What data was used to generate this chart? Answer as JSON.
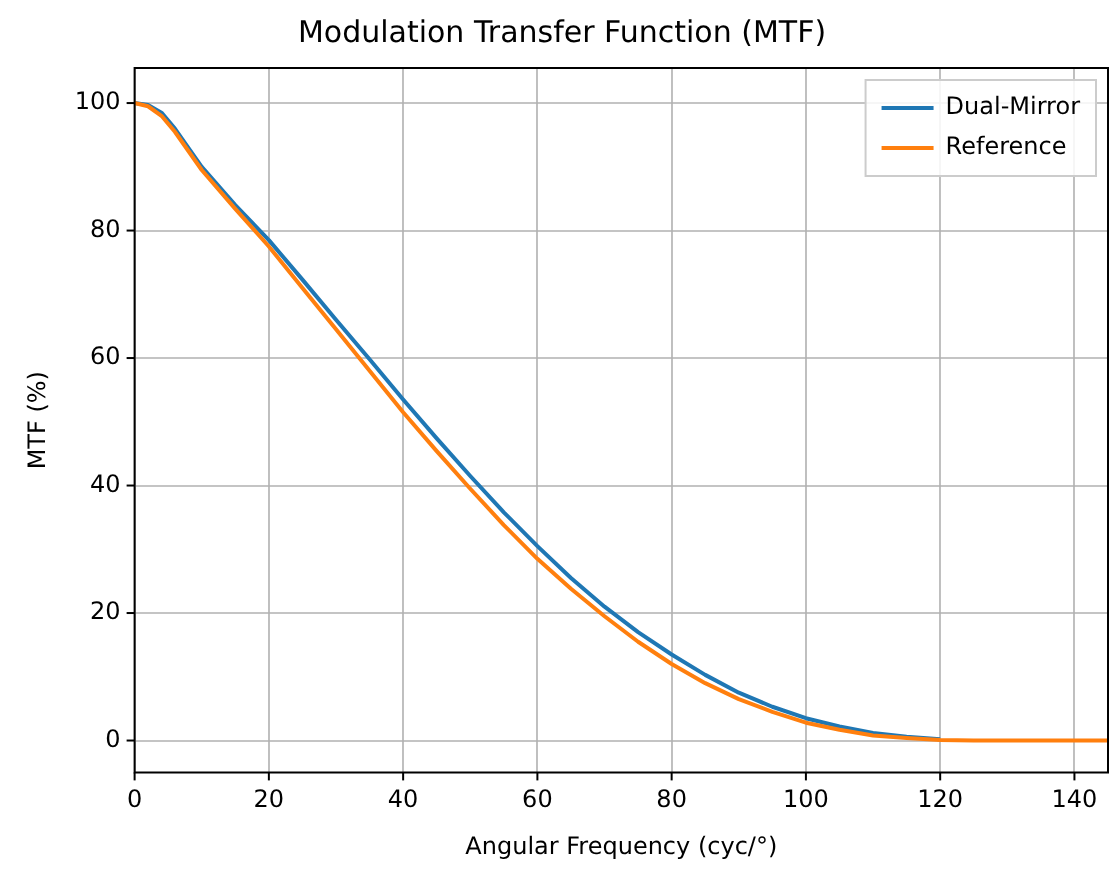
{
  "chart_data": {
    "type": "line",
    "title": "Modulation Transfer Function (MTF)",
    "xlabel": "Angular Frequency (cyc/°)",
    "ylabel": "MTF (%)",
    "x": [
      0,
      2,
      4,
      6,
      10,
      15,
      20,
      25,
      30,
      35,
      40,
      45,
      50,
      55,
      60,
      65,
      70,
      75,
      80,
      85,
      90,
      95,
      100,
      105,
      110,
      115,
      120,
      125,
      130,
      135,
      140,
      145
    ],
    "series": [
      {
        "name": "Dual-Mirror",
        "color": "#1f77b4",
        "values": [
          100,
          99.7,
          98.5,
          96,
          90,
          84,
          78.5,
          72.3,
          66,
          59.8,
          53.5,
          47.4,
          41.5,
          35.8,
          30.5,
          25.5,
          21,
          17,
          13.5,
          10.3,
          7.5,
          5.3,
          3.5,
          2.2,
          1.2,
          0.6,
          0.2,
          null,
          null,
          null,
          null,
          null
        ]
      },
      {
        "name": "Reference",
        "color": "#ff7f0e",
        "values": [
          100,
          99.5,
          98,
          95.5,
          89.5,
          83.4,
          77.5,
          71,
          64.5,
          58,
          51.5,
          45.4,
          39.5,
          33.8,
          28.5,
          23.8,
          19.5,
          15.5,
          12,
          9,
          6.5,
          4.5,
          2.8,
          1.7,
          0.8,
          0.4,
          0.1,
          0,
          0,
          0,
          0,
          0
        ]
      }
    ],
    "xlim": [
      0,
      145
    ],
    "xticks": [
      0,
      20,
      40,
      60,
      80,
      100,
      120,
      140
    ],
    "ylim": [
      -5,
      105.5
    ],
    "yticks": [
      0,
      20,
      40,
      60,
      80,
      100
    ],
    "grid": true,
    "legend": "top right",
    "line_style": "solid",
    "marker": "none"
  }
}
